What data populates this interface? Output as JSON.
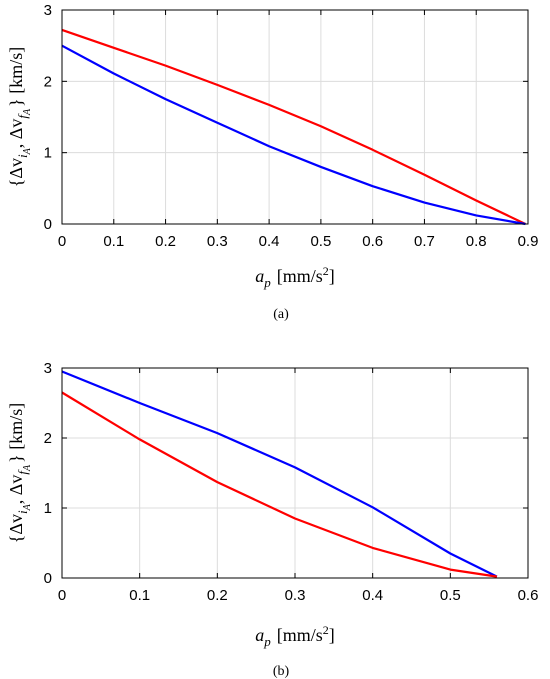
{
  "chart_data": [
    {
      "type": "line",
      "panel_label": "(a)",
      "xlabel_var": "a",
      "xlabel_sub": "p",
      "xlabel_unit": "[mm/s",
      "xlabel_unit_sup": "2",
      "xlabel_unit_end": "]",
      "ylabel_open": "{Δv",
      "ylabel_sub1": "i",
      "ylabel_subsub1": "A",
      "ylabel_mid": ", Δv",
      "ylabel_sub2": "f",
      "ylabel_subsub2": "A",
      "ylabel_close": "} [km/s]",
      "xlim": [
        0,
        0.9
      ],
      "ylim": [
        0,
        3
      ],
      "xticks": [
        "0",
        "0.1",
        "0.2",
        "0.3",
        "0.4",
        "0.5",
        "0.6",
        "0.7",
        "0.8",
        "0.9"
      ],
      "yticks": [
        "0",
        "1",
        "2",
        "3"
      ],
      "grid": true,
      "series": [
        {
          "color": "#ff0000",
          "points": [
            [
              0,
              2.72
            ],
            [
              0.1,
              2.47
            ],
            [
              0.2,
              2.22
            ],
            [
              0.3,
              1.95
            ],
            [
              0.4,
              1.67
            ],
            [
              0.5,
              1.37
            ],
            [
              0.6,
              1.04
            ],
            [
              0.7,
              0.69
            ],
            [
              0.8,
              0.33
            ],
            [
              0.895,
              0.0
            ]
          ]
        },
        {
          "color": "#0000ff",
          "points": [
            [
              0,
              2.5
            ],
            [
              0.1,
              2.11
            ],
            [
              0.2,
              1.75
            ],
            [
              0.3,
              1.42
            ],
            [
              0.4,
              1.09
            ],
            [
              0.5,
              0.8
            ],
            [
              0.6,
              0.53
            ],
            [
              0.7,
              0.3
            ],
            [
              0.8,
              0.12
            ],
            [
              0.895,
              0.0
            ]
          ]
        }
      ]
    },
    {
      "type": "line",
      "panel_label": "(b)",
      "xlabel_var": "a",
      "xlabel_sub": "p",
      "xlabel_unit": "[mm/s",
      "xlabel_unit_sup": "2",
      "xlabel_unit_end": "]",
      "ylabel_open": "{Δv",
      "ylabel_sub1": "i",
      "ylabel_subsub1": "A",
      "ylabel_mid": ", Δv",
      "ylabel_sub2": "f",
      "ylabel_subsub2": "A",
      "ylabel_close": "} [km/s]",
      "xlim": [
        0,
        0.6
      ],
      "ylim": [
        0,
        3
      ],
      "xticks": [
        "0",
        "0.1",
        "0.2",
        "0.3",
        "0.4",
        "0.5",
        "0.6"
      ],
      "yticks": [
        "0",
        "1",
        "2",
        "3"
      ],
      "grid": true,
      "series": [
        {
          "color": "#0000ff",
          "points": [
            [
              0,
              2.95
            ],
            [
              0.1,
              2.5
            ],
            [
              0.2,
              2.07
            ],
            [
              0.3,
              1.58
            ],
            [
              0.4,
              1.01
            ],
            [
              0.5,
              0.35
            ],
            [
              0.56,
              0.02
            ]
          ]
        },
        {
          "color": "#ff0000",
          "points": [
            [
              0,
              2.65
            ],
            [
              0.1,
              1.98
            ],
            [
              0.2,
              1.37
            ],
            [
              0.3,
              0.85
            ],
            [
              0.4,
              0.43
            ],
            [
              0.5,
              0.12
            ],
            [
              0.56,
              0.02
            ]
          ]
        }
      ]
    }
  ]
}
